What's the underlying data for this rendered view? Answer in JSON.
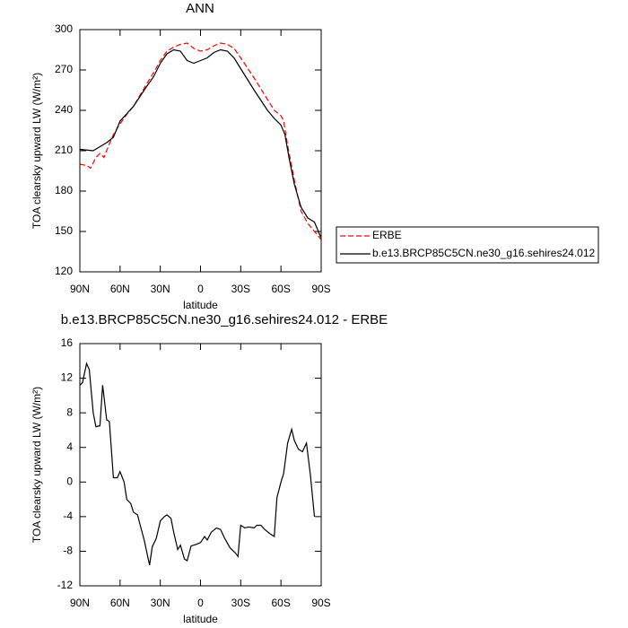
{
  "chart_data": [
    {
      "type": "line",
      "title": "ANN",
      "xlabel": "latitude",
      "ylabel": "TOA clearsky upward LW (W/m²)",
      "xlim": [
        90,
        -90
      ],
      "xticks": [
        {
          "value": 90,
          "label": "90N"
        },
        {
          "value": 60,
          "label": "60N"
        },
        {
          "value": 30,
          "label": "30N"
        },
        0,
        {
          "value": -30,
          "label": "30S"
        },
        {
          "value": -60,
          "label": "60S"
        },
        {
          "value": -90,
          "label": "90S"
        }
      ],
      "ylim": [
        120,
        300
      ],
      "yticks": [
        120,
        150,
        180,
        210,
        240,
        270,
        300
      ],
      "legend": "right",
      "series": [
        {
          "name": "ERBE",
          "color": "#ff0000",
          "dash": "dashed",
          "x": [
            90,
            85,
            82,
            78,
            75,
            72,
            68,
            65,
            60,
            55,
            50,
            40,
            35,
            30,
            25,
            20,
            15,
            10,
            5,
            0,
            -5,
            -10,
            -15,
            -20,
            -25,
            -30,
            -40,
            -50,
            -55,
            -60,
            -62,
            -65,
            -70,
            -75,
            -80,
            -85,
            -90
          ],
          "values": [
            200,
            199,
            197,
            205,
            208,
            205,
            215,
            222,
            230,
            237,
            243,
            260,
            268,
            277,
            284,
            287,
            289,
            290,
            286,
            284,
            285,
            288,
            290,
            289,
            286,
            279,
            264,
            248,
            240,
            236,
            232,
            214,
            188,
            165,
            156,
            150,
            144
          ]
        },
        {
          "name": "b.e13.BRCP85C5CN.ne30_g16.sehires24.012",
          "color": "#000000",
          "dash": "solid",
          "x": [
            90,
            80,
            70,
            65,
            60,
            50,
            40,
            35,
            30,
            25,
            20,
            15,
            10,
            5,
            0,
            -5,
            -10,
            -15,
            -20,
            -25,
            -30,
            -40,
            -50,
            -55,
            -60,
            -63,
            -66,
            -70,
            -75,
            -80,
            -85,
            -90
          ],
          "values": [
            211,
            210,
            216,
            220,
            232,
            243,
            258,
            265,
            275,
            282,
            285,
            284,
            277,
            275,
            277,
            279,
            283,
            285,
            284,
            279,
            271,
            255,
            240,
            234,
            229,
            222,
            205,
            185,
            168,
            160,
            157,
            145
          ]
        }
      ]
    },
    {
      "type": "line",
      "title": "b.e13.BRCP85C5CN.ne30_g16.sehires24.012 - ERBE",
      "xlabel": "latitude",
      "ylabel": "TOA clearsky upward LW (W/m²)",
      "xlim": [
        90,
        -90
      ],
      "xticks": [
        {
          "value": 90,
          "label": "90N"
        },
        {
          "value": 60,
          "label": "60N"
        },
        {
          "value": 30,
          "label": "30N"
        },
        0,
        {
          "value": -30,
          "label": "30S"
        },
        {
          "value": -60,
          "label": "60S"
        },
        {
          "value": -90,
          "label": "90S"
        }
      ],
      "ylim": [
        -12,
        16
      ],
      "yticks": [
        -12,
        -8,
        -4,
        0,
        4,
        8,
        12,
        16
      ],
      "series": [
        {
          "color": "#000000",
          "dash": "solid",
          "x": [
            90,
            88,
            85,
            83,
            80,
            78,
            75,
            73,
            70,
            68,
            65,
            62,
            60,
            57,
            55,
            52,
            50,
            47,
            45,
            42,
            38,
            36,
            33,
            30,
            27,
            25,
            22,
            20,
            17,
            15,
            12,
            10,
            7,
            3,
            0,
            -3,
            -5,
            -8,
            -12,
            -15,
            -18,
            -22,
            -26,
            -28,
            -30,
            -33,
            -36,
            -40,
            -42,
            -45,
            -48,
            -52,
            -55,
            -57,
            -60,
            -62,
            -65,
            -68,
            -70,
            -73,
            -76,
            -79,
            -82,
            -85
          ],
          "values": [
            11.2,
            11.5,
            13.7,
            13,
            8,
            6.4,
            6.5,
            11.2,
            7.2,
            7,
            0.5,
            0.5,
            1.2,
            0,
            -2,
            -2.5,
            -3.5,
            -3.8,
            -5,
            -6.7,
            -9.6,
            -7.5,
            -6.5,
            -4.5,
            -4,
            -3.8,
            -4.2,
            -5.8,
            -7.8,
            -7.3,
            -8.9,
            -9.1,
            -7.4,
            -7.2,
            -7,
            -6.3,
            -6.7,
            -5.8,
            -5.3,
            -5.5,
            -6.5,
            -7.6,
            -8.2,
            -8.6,
            -5,
            -5.3,
            -5.2,
            -5.3,
            -5,
            -5,
            -5.5,
            -6,
            -6.3,
            -1.8,
            0,
            1,
            4.5,
            6.1,
            4.8,
            3.8,
            3.5,
            4.5,
            0.8,
            -4
          ]
        }
      ]
    }
  ]
}
